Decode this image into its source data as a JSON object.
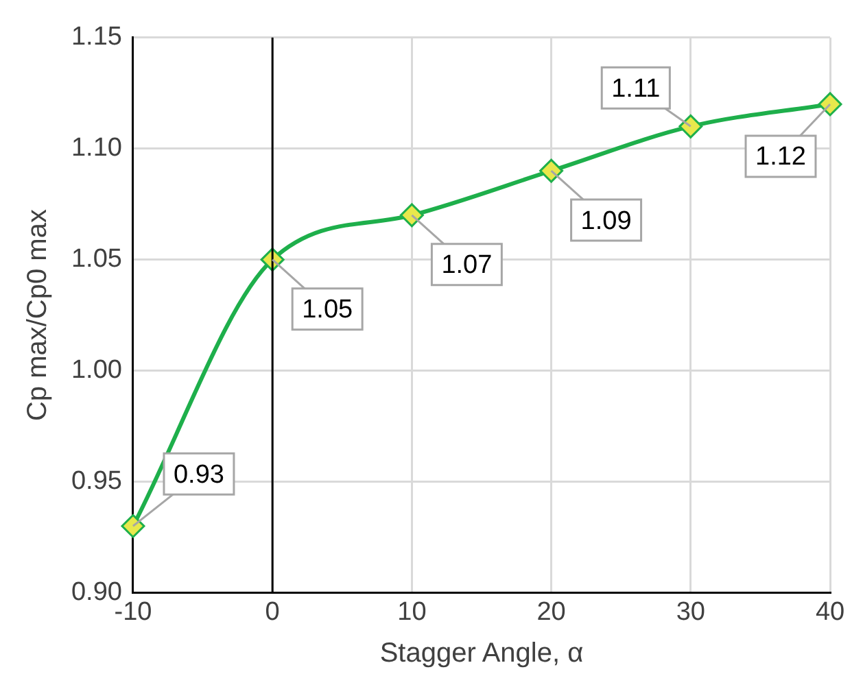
{
  "chart_data": {
    "type": "line",
    "xlabel": "Stagger Angle, α",
    "ylabel": "Cp max/Cp0 max",
    "x": [
      -10,
      0,
      10,
      20,
      30,
      40
    ],
    "series": [
      {
        "color": "#1eaf4b",
        "values": [
          0.93,
          1.05,
          1.07,
          1.09,
          1.11,
          1.12
        ]
      }
    ],
    "xlim": [
      -10,
      40
    ],
    "xticks": [
      -10,
      0,
      10,
      20,
      30,
      40
    ],
    "ylim": [
      0.9,
      1.15
    ],
    "yticks": [
      {
        "value": 0.9,
        "label": "0.90"
      },
      {
        "value": 0.95,
        "label": "0.95"
      },
      {
        "value": 1.0,
        "label": "1.00"
      },
      {
        "value": 1.05,
        "label": "1.05"
      },
      {
        "value": 1.1,
        "label": "1.10"
      },
      {
        "value": 1.15,
        "label": "1.15"
      }
    ],
    "ref_lines": [
      {
        "axis": "x",
        "value": 0,
        "color": "#000000"
      }
    ],
    "grid": true,
    "marker": "diamond",
    "data_labels": true,
    "legend": false
  }
}
